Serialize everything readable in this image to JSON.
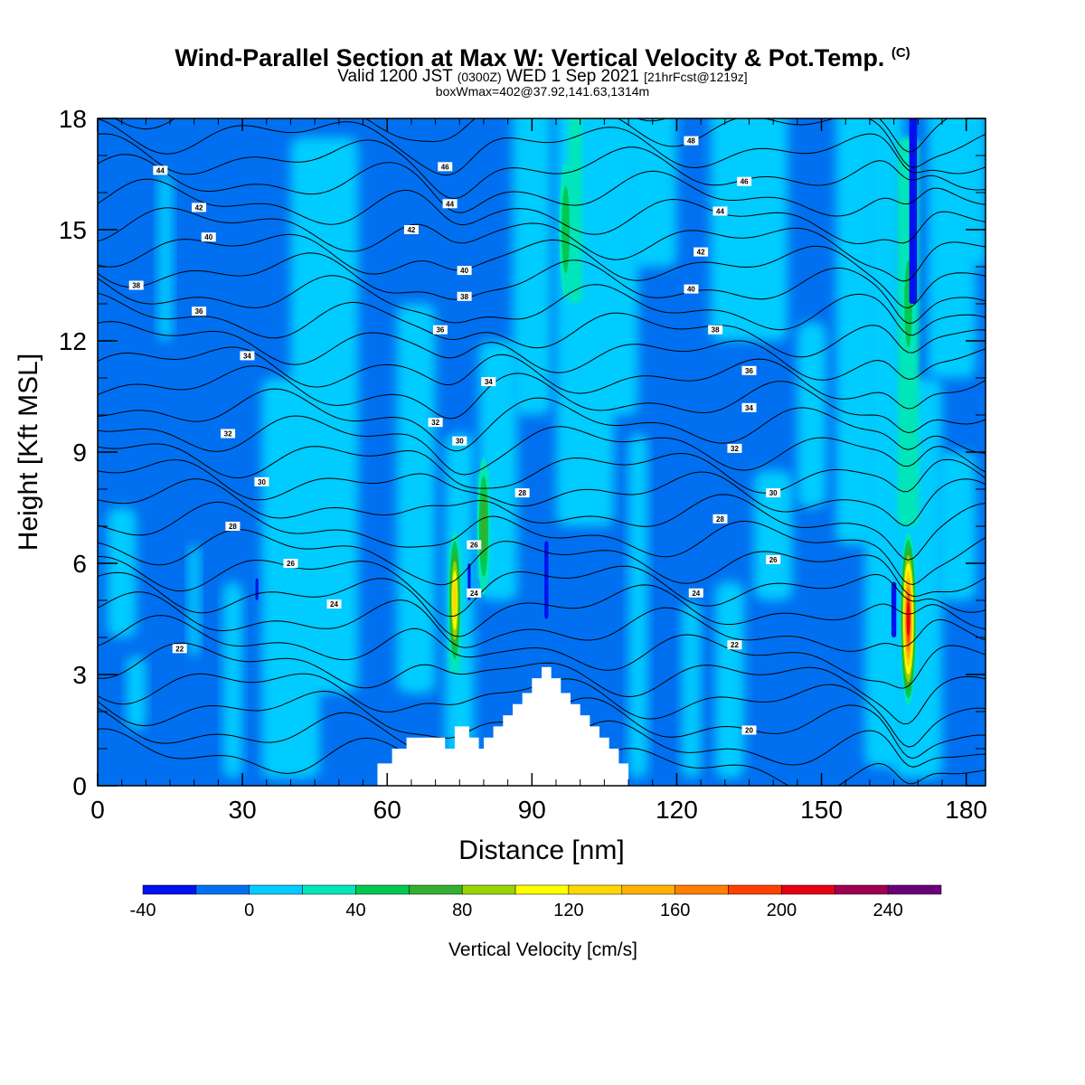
{
  "header": {
    "title_main": "Wind-Parallel Section at Max W: Vertical Velocity & Pot.Temp.",
    "title_mark": "(C)",
    "valid_a": "Valid 1200 JST",
    "valid_b": "(0300Z)",
    "valid_c": "WED 1 Sep 2021",
    "valid_d": "[21hrFcst@1219z]",
    "box_info": "boxWmax=402@37.92,141.63,1314m"
  },
  "chart_data": {
    "type": "heatmap",
    "title": "Wind-Parallel Section at Max W: Vertical Velocity & Pot.Temp.",
    "xlabel": "Distance [nm]",
    "ylabel": "Height [Kft MSL]",
    "xlim": [
      0,
      184
    ],
    "ylim": [
      0,
      18
    ],
    "x_ticks": [
      "0",
      "30",
      "60",
      "90",
      "120",
      "150",
      "180"
    ],
    "y_ticks": [
      "0",
      "3",
      "6",
      "9",
      "12",
      "15",
      "18"
    ],
    "colorbar": {
      "label": "Vertical Velocity [cm/s]",
      "levels": [
        -40,
        -20,
        0,
        20,
        40,
        60,
        80,
        100,
        120,
        140,
        160,
        180,
        200,
        220,
        240,
        260
      ],
      "colors": [
        "#0010ee",
        "#0070f0",
        "#00ccff",
        "#00e6b8",
        "#00c850",
        "#33b030",
        "#99d400",
        "#ffff00",
        "#ffd700",
        "#ffb000",
        "#ff8000",
        "#ff4000",
        "#e60014",
        "#a00050",
        "#6c007c"
      ],
      "tick_labels": [
        "-40",
        "0",
        "40",
        "80",
        "120",
        "160",
        "200",
        "240"
      ]
    },
    "terrain_profile": [
      [
        0,
        0
      ],
      [
        58,
        0
      ],
      [
        58,
        0.6
      ],
      [
        61,
        0.6
      ],
      [
        61,
        1
      ],
      [
        64,
        1
      ],
      [
        64,
        1.3
      ],
      [
        72,
        1.3
      ],
      [
        72,
        1
      ],
      [
        74,
        1
      ],
      [
        74,
        1.6
      ],
      [
        77,
        1.6
      ],
      [
        77,
        1.3
      ],
      [
        79,
        1.3
      ],
      [
        79,
        1
      ],
      [
        80,
        1
      ],
      [
        80,
        1.3
      ],
      [
        82,
        1.3
      ],
      [
        82,
        1.6
      ],
      [
        84,
        1.6
      ],
      [
        84,
        1.9
      ],
      [
        86,
        1.9
      ],
      [
        86,
        2.2
      ],
      [
        88,
        2.2
      ],
      [
        88,
        2.5
      ],
      [
        90,
        2.5
      ],
      [
        90,
        2.9
      ],
      [
        92,
        2.9
      ],
      [
        92,
        3.2
      ],
      [
        94,
        3.2
      ],
      [
        94,
        2.9
      ],
      [
        96,
        2.9
      ],
      [
        96,
        2.5
      ],
      [
        98,
        2.5
      ],
      [
        98,
        2.2
      ],
      [
        100,
        2.2
      ],
      [
        100,
        1.9
      ],
      [
        102,
        1.9
      ],
      [
        102,
        1.6
      ],
      [
        104,
        1.6
      ],
      [
        104,
        1.3
      ],
      [
        106,
        1.3
      ],
      [
        106,
        1
      ],
      [
        108,
        1
      ],
      [
        108,
        0.6
      ],
      [
        110,
        0.6
      ],
      [
        110,
        0
      ],
      [
        184,
        0
      ]
    ],
    "updraft_cores": [
      {
        "x": 74,
        "y": 5.0,
        "w_max": 140
      },
      {
        "x": 80,
        "y": 7.0,
        "w_max": 80
      },
      {
        "x": 97,
        "y": 15.0,
        "w_max": 60
      },
      {
        "x": 168,
        "y": 4.5,
        "w_max": 220
      },
      {
        "x": 168,
        "y": 13.0,
        "w_max": 60
      }
    ],
    "isentropes": [
      {
        "theta": 20,
        "label_xy": [
          135,
          1.5
        ]
      },
      {
        "theta": 22,
        "label_xy": [
          17,
          3.7
        ],
        "label_xy2": [
          132,
          3.8
        ]
      },
      {
        "theta": 24,
        "label_xy": [
          49,
          4.9
        ],
        "label_xy2": [
          124,
          5.2
        ],
        "label_xy3": [
          78,
          5.2
        ]
      },
      {
        "theta": 26,
        "label_xy": [
          40,
          6.0
        ],
        "label_xy2": [
          78,
          6.5
        ],
        "label_xy3": [
          140,
          6.1
        ]
      },
      {
        "theta": 28,
        "label_xy": [
          28,
          7.0
        ],
        "label_xy2": [
          88,
          7.9
        ],
        "label_xy3": [
          129,
          7.2
        ]
      },
      {
        "theta": 30,
        "label_xy": [
          34,
          8.2
        ],
        "label_xy2": [
          75,
          9.3
        ],
        "label_xy3": [
          140,
          7.9
        ]
      },
      {
        "theta": 32,
        "label_xy": [
          27,
          9.5
        ],
        "label_xy2": [
          70,
          9.8
        ],
        "label_xy3": [
          132,
          9.1
        ]
      },
      {
        "theta": 34,
        "label_xy": [
          31,
          11.6
        ],
        "label_xy2": [
          81,
          10.9
        ],
        "label_xy3": [
          135,
          10.2
        ]
      },
      {
        "theta": 36,
        "label_xy": [
          21,
          12.8
        ],
        "label_xy2": [
          71,
          12.3
        ],
        "label_xy3": [
          135,
          11.2
        ]
      },
      {
        "theta": 38,
        "label_xy": [
          8,
          13.5
        ],
        "label_xy2": [
          76,
          13.2
        ],
        "label_xy3": [
          128,
          12.3
        ]
      },
      {
        "theta": 40,
        "label_xy": [
          23,
          14.8
        ],
        "label_xy2": [
          76,
          13.9
        ],
        "label_xy3": [
          123,
          13.4
        ]
      },
      {
        "theta": 42,
        "label_xy": [
          21,
          15.6
        ],
        "label_xy2": [
          65,
          15.0
        ],
        "label_xy3": [
          125,
          14.4
        ]
      },
      {
        "theta": 44,
        "label_xy": [
          13,
          16.6
        ],
        "label_xy2": [
          73,
          15.7
        ],
        "label_xy3": [
          129,
          15.5
        ]
      },
      {
        "theta": 46,
        "label_xy": [
          72,
          16.7
        ],
        "label_xy2": [
          134,
          16.3
        ]
      },
      {
        "theta": 48,
        "label_xy": [
          123,
          17.4
        ]
      }
    ]
  }
}
